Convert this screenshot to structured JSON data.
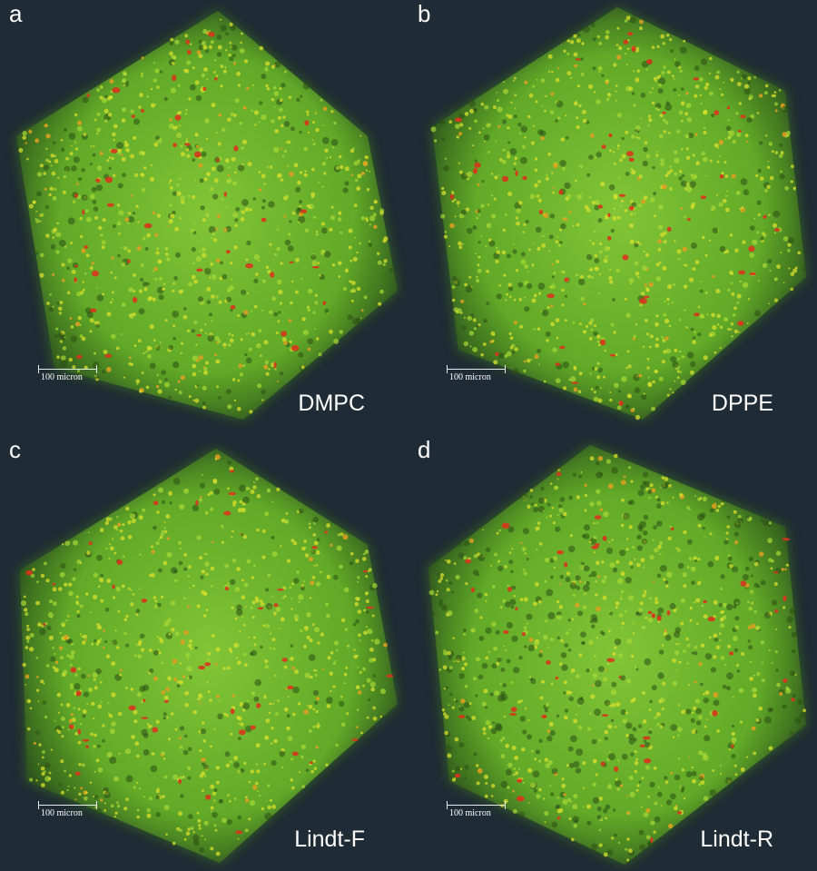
{
  "panels": [
    {
      "letter": "a",
      "sample": "DMPC"
    },
    {
      "letter": "b",
      "sample": "DPPE"
    },
    {
      "letter": "c",
      "sample": "Lindt-F"
    },
    {
      "letter": "d",
      "sample": "Lindt-R"
    }
  ],
  "scale_bar": {
    "label": "100 micron"
  },
  "colors": {
    "background": "#1f2b35",
    "volume_green": "#6fbf2a",
    "volume_yellow": "#d8e02c",
    "inclusion_red": "#d8351c"
  }
}
